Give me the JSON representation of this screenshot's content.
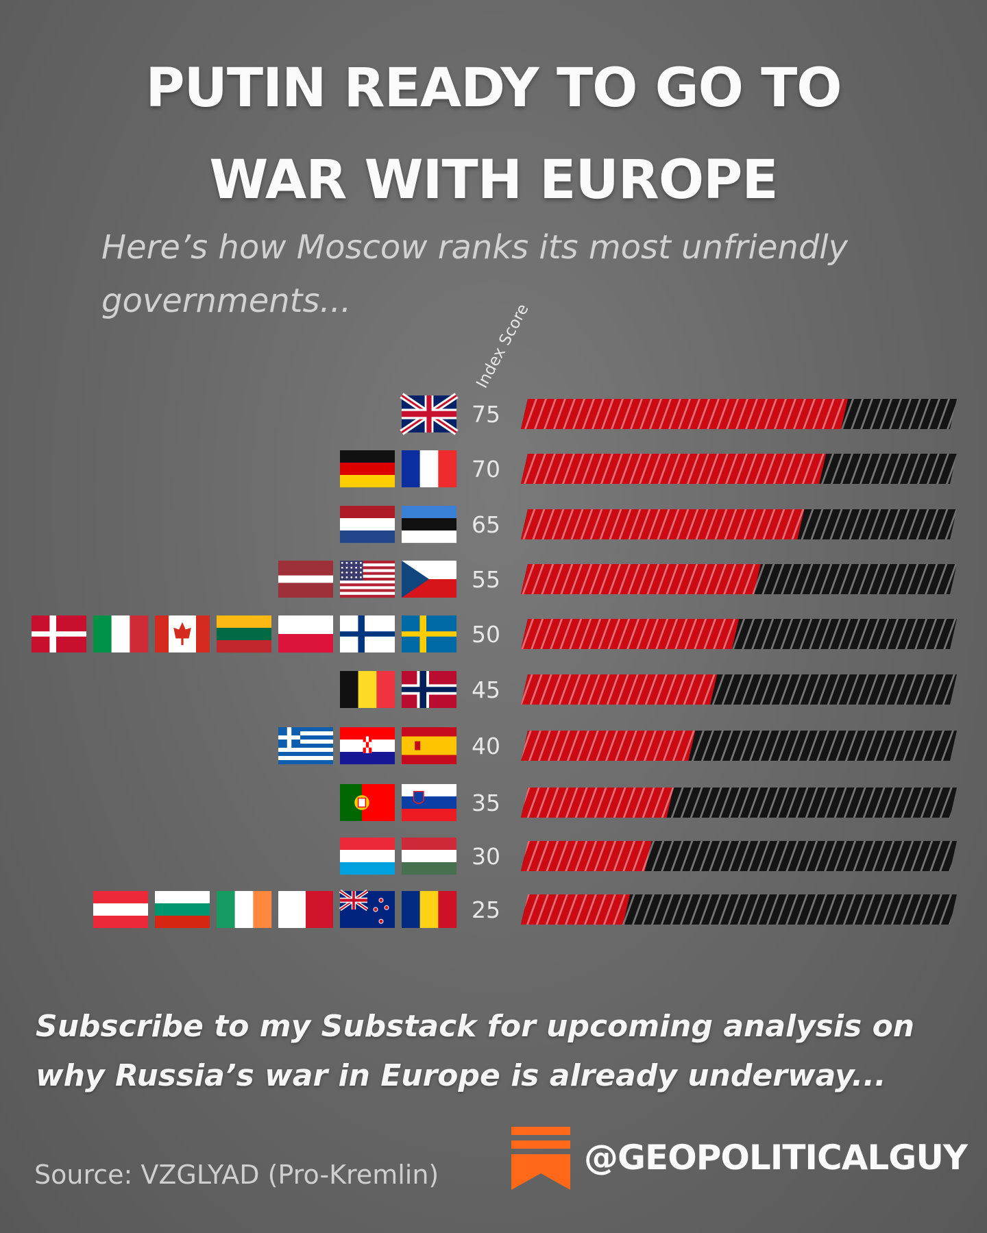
{
  "title_line1": "PUTIN READY TO GO TO",
  "title_line2": "WAR WITH EUROPE",
  "subtitle": "Here’s how Moscow ranks its most unfriendly governments...",
  "footer": {
    "line1": "Subscribe to my Substack for upcoming analysis on",
    "line2": "why Russia’s war in Europe is already underway...",
    "source": "Source: VZGLYAD (Pro-Kremlin)",
    "handle": "@GEOPOLITICALGUY",
    "logo_icon": "substack-logo-icon"
  },
  "colors": {
    "bar_fill": "#cc0a14",
    "bar_empty": "#141414",
    "logo": "#ff6719"
  },
  "chart_data": {
    "type": "bar",
    "orientation": "horizontal",
    "axis_label": "Index Score",
    "xlim": [
      0,
      100
    ],
    "rows": [
      {
        "value": 75,
        "label": "75",
        "flags": [
          "gb"
        ]
      },
      {
        "value": 70,
        "label": "70",
        "flags": [
          "de",
          "fr"
        ]
      },
      {
        "value": 65,
        "label": "65",
        "flags": [
          "nl",
          "ee"
        ]
      },
      {
        "value": 55,
        "label": "55",
        "flags": [
          "lv",
          "us",
          "cz"
        ]
      },
      {
        "value": 50,
        "label": "50",
        "flags": [
          "dk",
          "it",
          "ca",
          "lt",
          "pl",
          "fi",
          "se"
        ]
      },
      {
        "value": 45,
        "label": "45",
        "flags": [
          "be",
          "no"
        ]
      },
      {
        "value": 40,
        "label": "40",
        "flags": [
          "gr",
          "hr",
          "es"
        ]
      },
      {
        "value": 35,
        "label": "35",
        "flags": [
          "pt",
          "si"
        ]
      },
      {
        "value": 30,
        "label": "30",
        "flags": [
          "lu",
          "hu"
        ]
      },
      {
        "value": 25,
        "label": "25",
        "flags": [
          "at",
          "bg",
          "ie",
          "mt",
          "nz",
          "ro"
        ]
      }
    ]
  }
}
